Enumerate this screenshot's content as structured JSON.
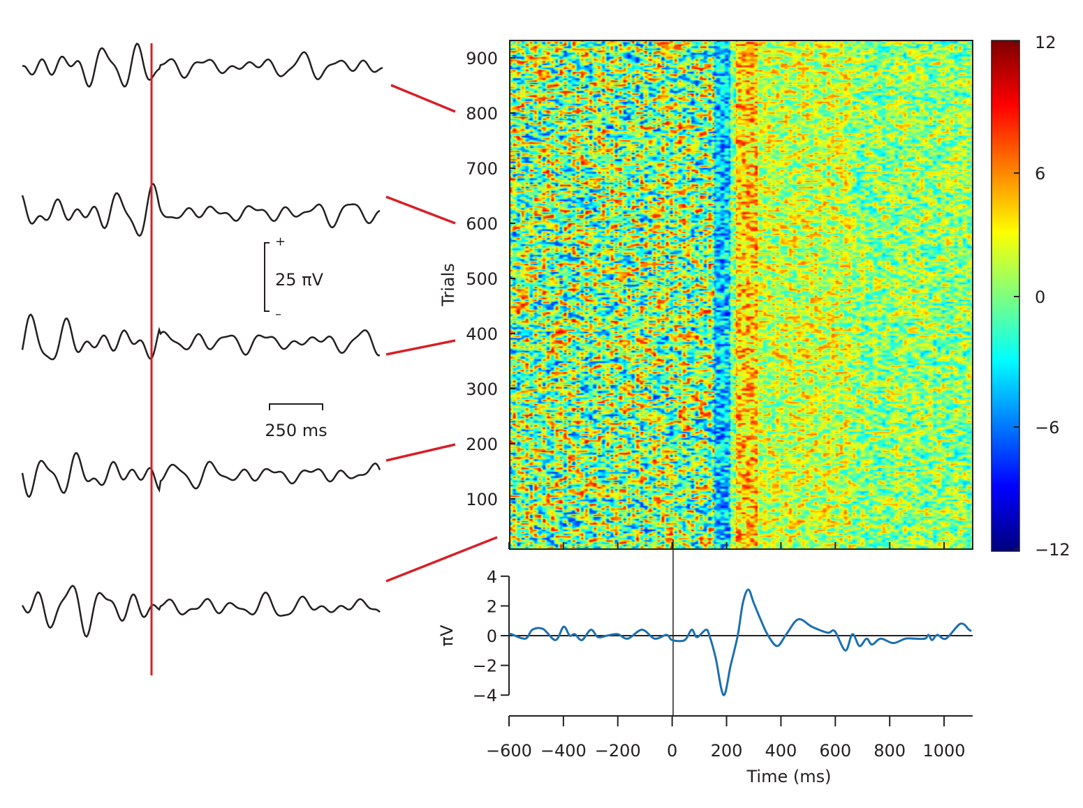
{
  "traces": {
    "count": 5,
    "scale_voltage_label": "25 πV",
    "scale_plus": "+",
    "scale_minus": "–",
    "scale_time_label": "250 ms",
    "trace_color": "#231f20",
    "marker_color": "#d71f26"
  },
  "chart_data": [
    {
      "type": "heatmap",
      "ylabel": "Trials",
      "y_ticks": [
        100,
        200,
        300,
        400,
        500,
        600,
        700,
        800,
        900
      ],
      "ylim": [
        10,
        930
      ],
      "xlim": [
        -600,
        1100
      ],
      "x_ticks": [
        -600,
        -400,
        -200,
        0,
        200,
        400,
        600,
        800,
        1000
      ],
      "colormap": "jet",
      "colorbar_ticks": [
        "12",
        "6",
        "0",
        "−6",
        "−12"
      ],
      "clim": [
        -12,
        12
      ]
    },
    {
      "type": "line",
      "xlabel": "Time (ms)",
      "ylabel": "πV",
      "xlim": [
        -600,
        1100
      ],
      "ylim": [
        -4,
        4
      ],
      "x_tick_labels": [
        "−600",
        "−400",
        "−200",
        "0",
        "200",
        "400",
        "600",
        "800",
        "1000"
      ],
      "x_ticks": [
        -600,
        -400,
        -200,
        0,
        200,
        400,
        600,
        800,
        1000
      ],
      "y_tick_labels": [
        "4",
        "2",
        "0",
        "−2",
        "−4"
      ],
      "y_ticks": [
        4,
        2,
        0,
        -2,
        -4
      ],
      "color": "#1a6faf",
      "x": [
        -600,
        -592,
        -540,
        -514,
        -475,
        -429,
        -399,
        -377,
        -358,
        -332,
        -299,
        -273,
        -240,
        -201,
        -163,
        -111,
        -65,
        -20,
        0,
        46,
        72,
        91,
        124,
        137,
        160,
        189,
        215,
        241,
        260,
        280,
        300,
        325,
        350,
        386,
        420,
        464,
        514,
        572,
        598,
        637,
        663,
        689,
        715,
        735,
        767,
        813,
        858,
        891,
        930,
        943,
        956,
        975,
        1007,
        1060,
        1092,
        1100
      ],
      "y": [
        0.1,
        0.1,
        -0.2,
        0.4,
        0.45,
        -0.3,
        0.6,
        0.0,
        0.1,
        -0.3,
        0.4,
        -0.1,
        0.0,
        0.1,
        -0.2,
        0.4,
        -0.2,
        0.05,
        -0.3,
        -0.3,
        0.4,
        -0.1,
        0.4,
        0.0,
        -1.5,
        -4.0,
        -2.0,
        0.0,
        2.2,
        3.1,
        2.2,
        1.1,
        0.1,
        -0.7,
        0.1,
        1.1,
        0.6,
        0.2,
        0.3,
        -1.0,
        0.1,
        -0.7,
        -0.2,
        -0.6,
        -0.2,
        -0.5,
        -0.2,
        -0.2,
        -0.2,
        0.05,
        -0.3,
        0.05,
        -0.2,
        0.8,
        0.4,
        0.3
      ]
    }
  ]
}
